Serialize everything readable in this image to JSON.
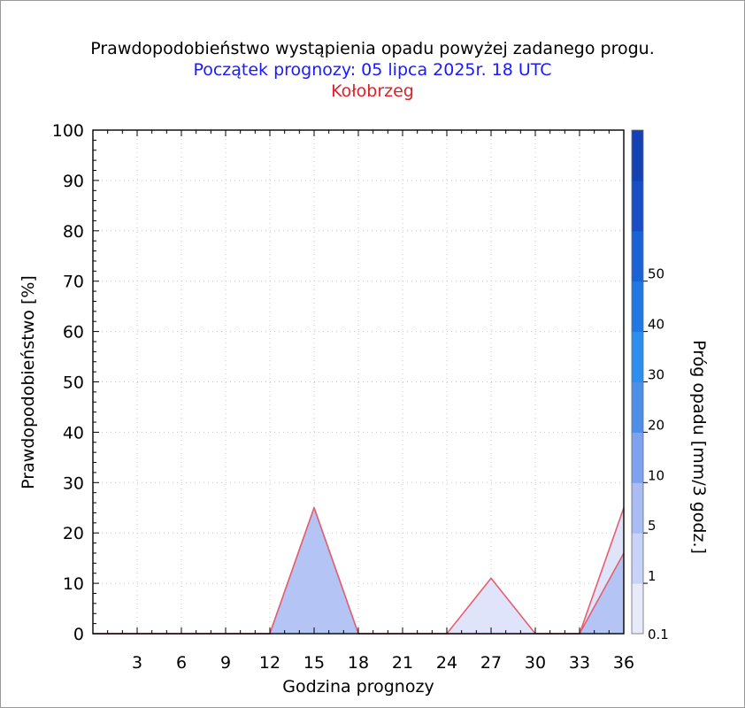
{
  "chart_data": {
    "type": "area",
    "title": "Prawdopodobieństwo wystąpienia opadu powyżej zadanego progu.",
    "subtitle": "Początek prognozy: 05 lipca 2025r. 18 UTC",
    "location": "Kołobrzeg",
    "xlabel": "Godzina prognozy",
    "ylabel": "Prawdopodobieństwo [%]",
    "colorbar_label": "Próg opadu [mm/3 godz.]",
    "xlim": [
      0,
      36
    ],
    "ylim": [
      0,
      100
    ],
    "x_ticks": [
      "3",
      "6",
      "9",
      "12",
      "15",
      "18",
      "21",
      "24",
      "27",
      "30",
      "33",
      "36"
    ],
    "y_ticks": [
      "0",
      "10",
      "20",
      "30",
      "40",
      "50",
      "60",
      "70",
      "80",
      "90",
      "100"
    ],
    "grid": true,
    "x": [
      0,
      3,
      6,
      9,
      12,
      15,
      18,
      21,
      24,
      27,
      30,
      33,
      36
    ],
    "series": [
      {
        "threshold": "0.1",
        "color": "#dfe4fb",
        "values": [
          0,
          0,
          0,
          0,
          0,
          25,
          0,
          0,
          0,
          11,
          0,
          0,
          25
        ]
      },
      {
        "threshold": "1",
        "color": "#b3c4f5",
        "values": [
          0,
          0,
          0,
          0,
          0,
          25,
          0,
          0,
          0,
          0,
          0,
          0,
          16
        ]
      }
    ],
    "colorbar": {
      "ticks": [
        "0.1",
        "1",
        "5",
        "10",
        "20",
        "30",
        "40",
        "50"
      ],
      "colors": [
        "#e6eafb",
        "#c9d3f8",
        "#a9bcf4",
        "#7ea2ee",
        "#4d8ee8",
        "#2b8ef0",
        "#1f78e6",
        "#1a62d8",
        "#174ec8",
        "#1441b4"
      ]
    }
  }
}
